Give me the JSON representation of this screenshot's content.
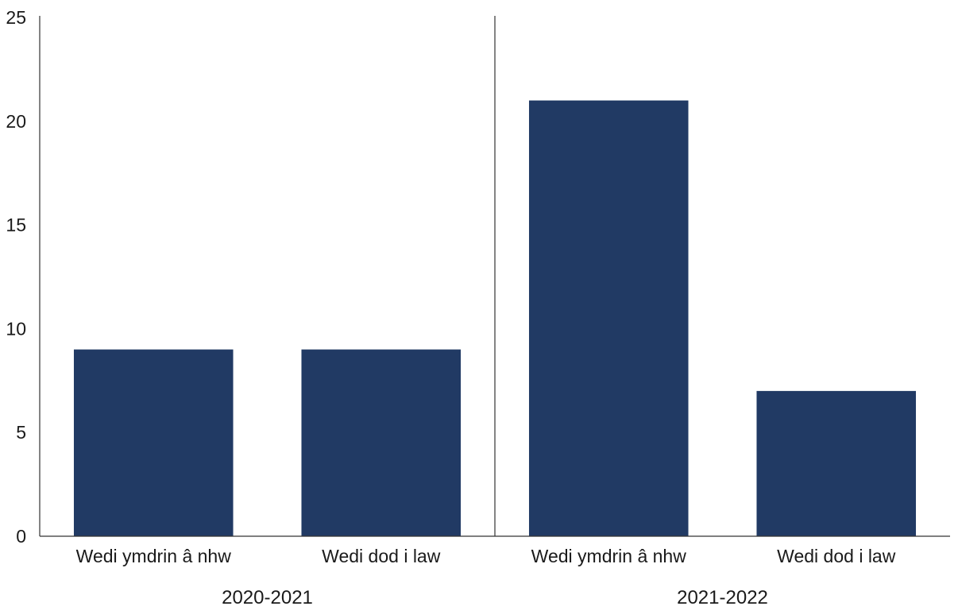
{
  "chart_data": {
    "type": "bar",
    "title": "",
    "xlabel": "",
    "ylabel": "",
    "ylim": [
      0,
      25
    ],
    "yticks": [
      0,
      5,
      10,
      15,
      20,
      25
    ],
    "grid": false,
    "bar_color": "#213a64",
    "axis_color": "#333333",
    "groups": [
      {
        "label": "2020-2021",
        "bars": [
          {
            "category": "Wedi ymdrin â nhw",
            "value": 9
          },
          {
            "category": "Wedi dod i law",
            "value": 9
          }
        ]
      },
      {
        "label": "2021-2022",
        "bars": [
          {
            "category": "Wedi ymdrin â nhw",
            "value": 21
          },
          {
            "category": "Wedi dod i law",
            "value": 7
          }
        ]
      }
    ]
  }
}
